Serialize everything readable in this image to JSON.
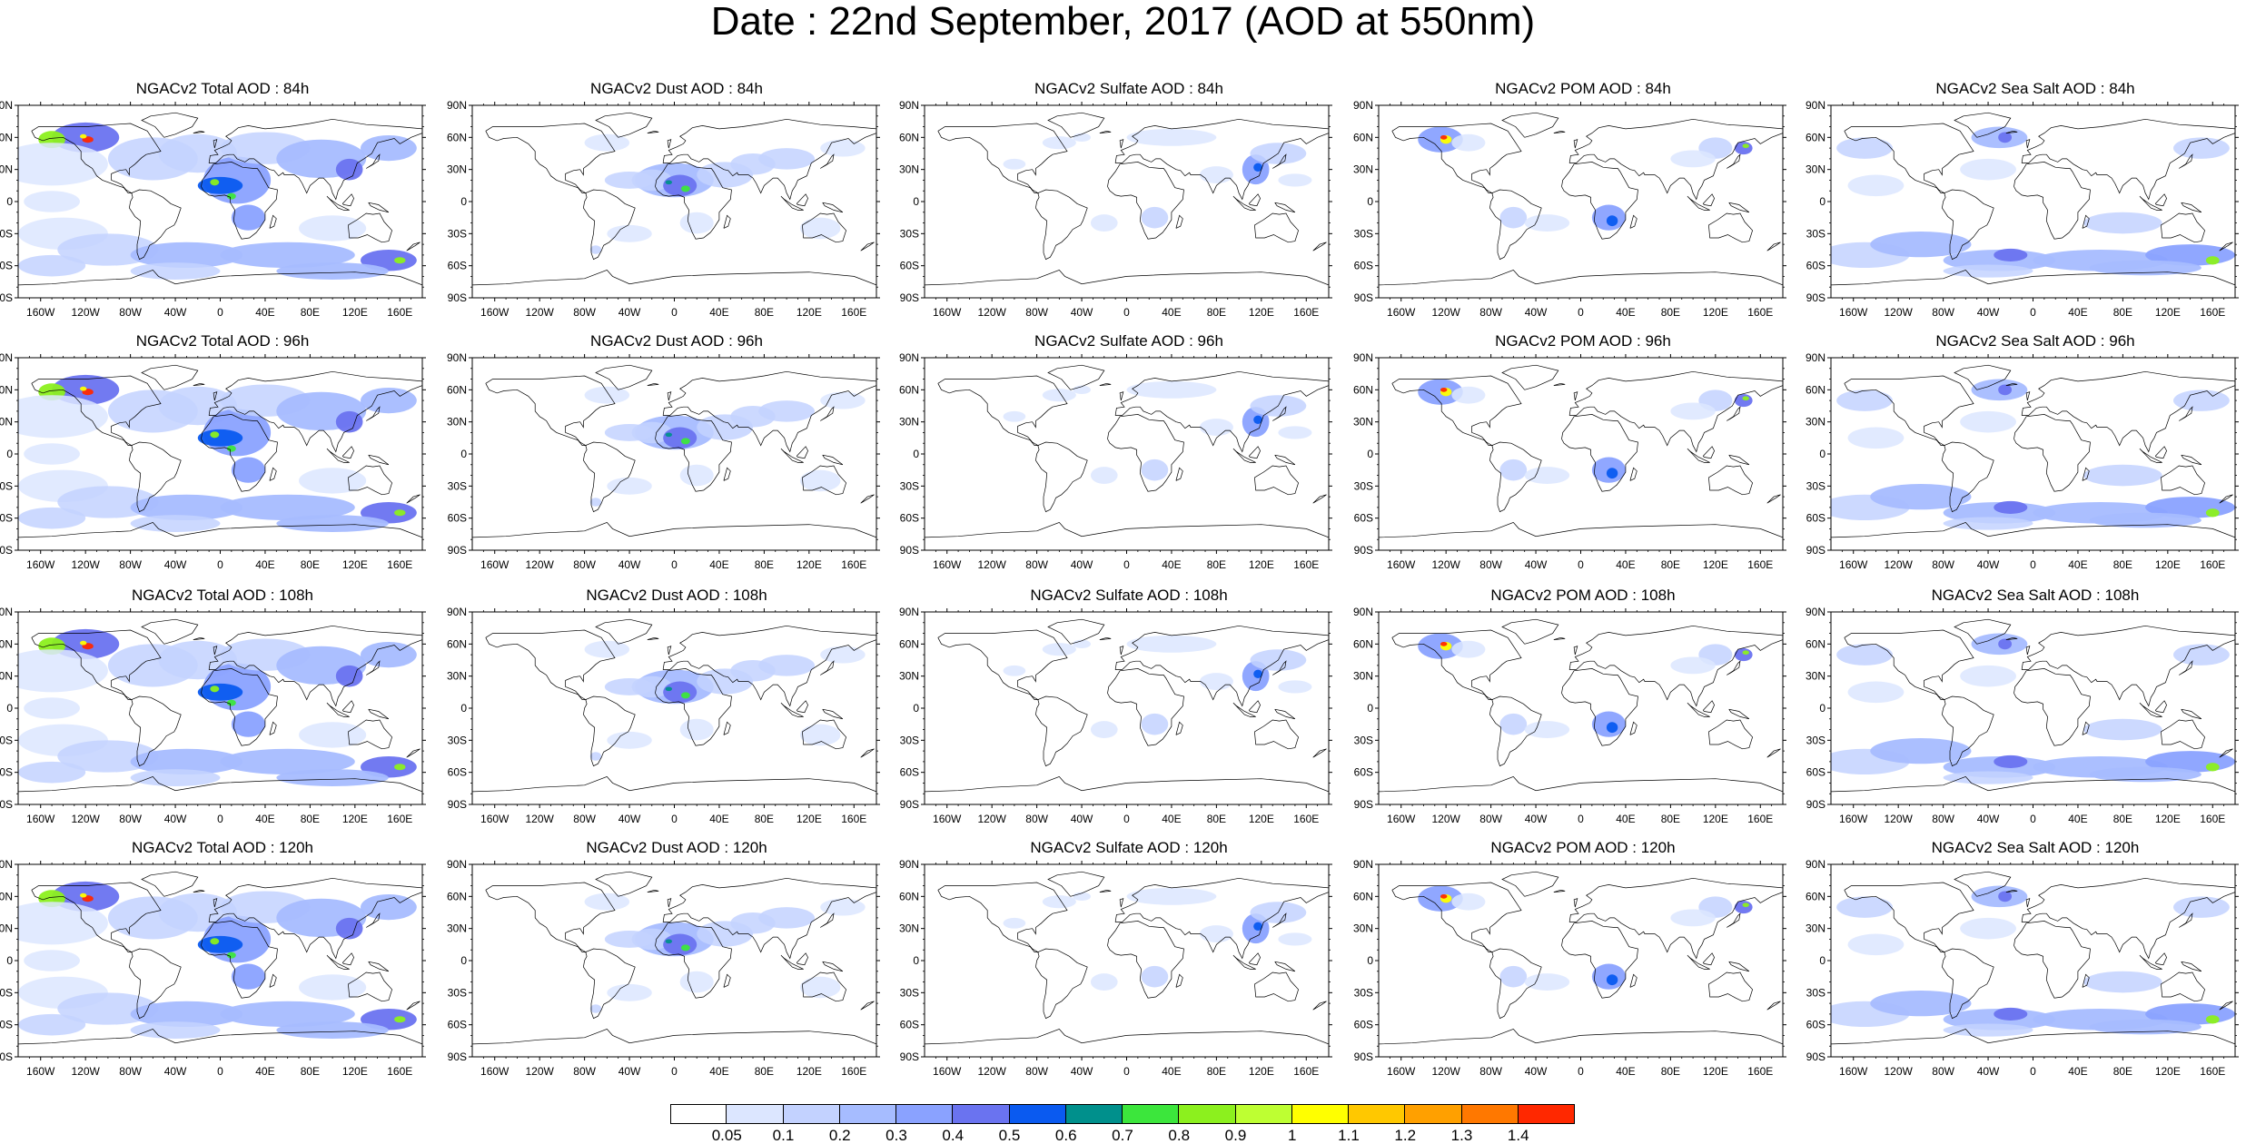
{
  "title": "Date : 22nd September, 2017 (AOD at 550nm)",
  "lat_labels": [
    "90N",
    "60N",
    "30N",
    "0",
    "30S",
    "60S",
    "90S"
  ],
  "lon_labels": [
    "160W",
    "120W",
    "80W",
    "40W",
    "0",
    "40E",
    "80E",
    "120E",
    "160E"
  ],
  "panels": [
    {
      "title": "NGACv2 Total AOD : 84h",
      "type": "total"
    },
    {
      "title": "NGACv2 Dust AOD : 84h",
      "type": "dust"
    },
    {
      "title": "NGACv2 Sulfate AOD : 84h",
      "type": "sulfate"
    },
    {
      "title": "NGACv2 POM AOD : 84h",
      "type": "pom"
    },
    {
      "title": "NGACv2 Sea Salt AOD : 84h",
      "type": "seasalt"
    },
    {
      "title": "NGACv2 Total AOD : 96h",
      "type": "total"
    },
    {
      "title": "NGACv2 Dust AOD : 96h",
      "type": "dust"
    },
    {
      "title": "NGACv2 Sulfate AOD : 96h",
      "type": "sulfate"
    },
    {
      "title": "NGACv2 POM AOD : 96h",
      "type": "pom"
    },
    {
      "title": "NGACv2 Sea Salt AOD : 96h",
      "type": "seasalt"
    },
    {
      "title": "NGACv2 Total AOD : 108h",
      "type": "total"
    },
    {
      "title": "NGACv2 Dust AOD : 108h",
      "type": "dust"
    },
    {
      "title": "NGACv2 Sulfate AOD : 108h",
      "type": "sulfate"
    },
    {
      "title": "NGACv2 POM AOD : 108h",
      "type": "pom"
    },
    {
      "title": "NGACv2 Sea Salt AOD : 108h",
      "type": "seasalt"
    },
    {
      "title": "NGACv2 Total AOD : 120h",
      "type": "total"
    },
    {
      "title": "NGACv2 Dust AOD : 120h",
      "type": "dust"
    },
    {
      "title": "NGACv2 Sulfate AOD : 120h",
      "type": "sulfate"
    },
    {
      "title": "NGACv2 POM AOD : 120h",
      "type": "pom"
    },
    {
      "title": "NGACv2 Sea Salt  AOD : 120h",
      "type": "seasalt"
    }
  ],
  "colorbar": {
    "colors": [
      "#ffffff",
      "#dce6ff",
      "#c3d2ff",
      "#a6bcff",
      "#8aa2ff",
      "#6a73f0",
      "#0a5af0",
      "#00908c",
      "#3ce63c",
      "#8cf01e",
      "#beff32",
      "#ffff00",
      "#ffc800",
      "#ffa000",
      "#ff7800",
      "#ff2800"
    ],
    "labels": [
      "0.05",
      "0.1",
      "0.2",
      "0.3",
      "0.4",
      "0.5",
      "0.6",
      "0.7",
      "0.8",
      "0.9",
      "1",
      "1.1",
      "1.2",
      "1.3",
      "1.4"
    ]
  }
}
